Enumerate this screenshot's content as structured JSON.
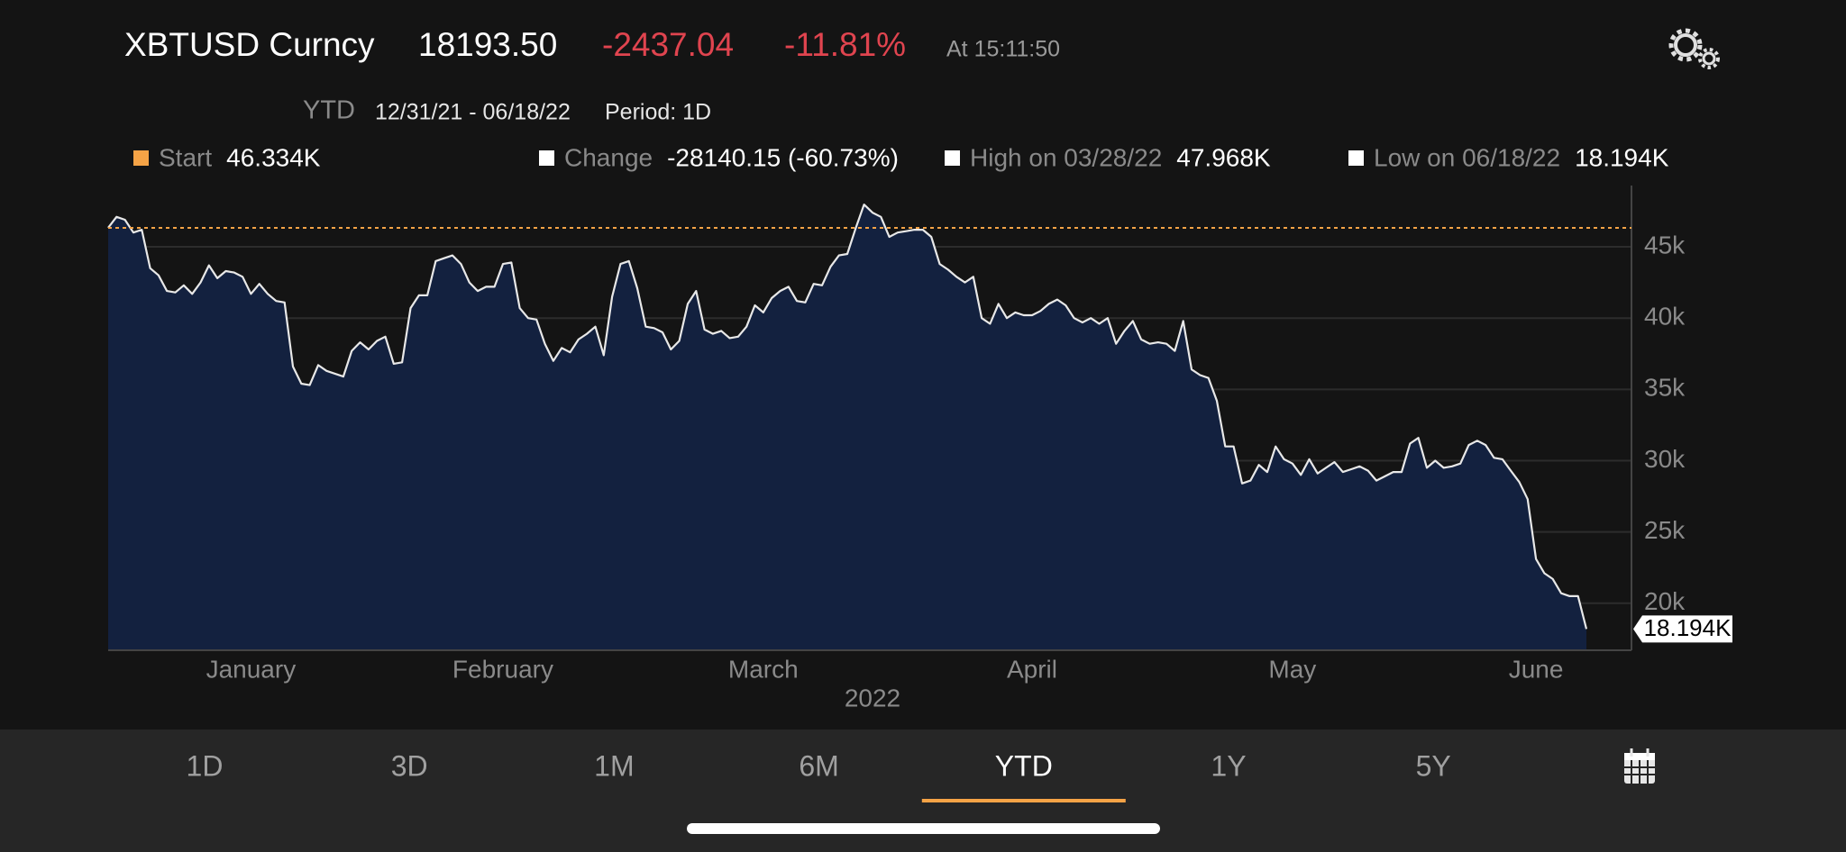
{
  "header": {
    "symbol": "XBTUSD Curncy",
    "price": "18193.50",
    "change": "-2437.04",
    "change_pct": "-11.81%",
    "time": "At 15:11:50"
  },
  "subheader": {
    "period_name": "YTD",
    "range": "12/31/21 - 06/18/22",
    "period": "Period: 1D"
  },
  "legend": [
    {
      "label": "Start",
      "value": "46.334K",
      "color": "#f5a346"
    },
    {
      "label": "Change",
      "value": "-28140.15 (-60.73%)",
      "color": "#ffffff"
    },
    {
      "label": "High on 03/28/22",
      "value": "47.968K",
      "color": "#ffffff"
    },
    {
      "label": "Low on 06/18/22",
      "value": "18.194K",
      "color": "#ffffff"
    }
  ],
  "chart_data": {
    "type": "area",
    "color": "#e8e8e8",
    "fill_color": "#13213f",
    "grid": true,
    "xlabel": "2022",
    "categories": [
      null,
      null,
      null,
      null,
      null,
      null,
      null,
      null,
      null,
      null,
      null,
      null,
      null,
      null,
      null,
      null,
      null,
      "January",
      null,
      null,
      null,
      null,
      null,
      null,
      null,
      null,
      null,
      null,
      null,
      null,
      null,
      null,
      null,
      null,
      null,
      null,
      null,
      null,
      null,
      null,
      null,
      null,
      null,
      null,
      null,
      null,
      null,
      "February",
      null,
      null,
      null,
      null,
      null,
      null,
      null,
      null,
      null,
      null,
      null,
      null,
      null,
      null,
      null,
      null,
      null,
      null,
      null,
      null,
      null,
      null,
      null,
      null,
      null,
      null,
      null,
      null,
      null,
      null,
      "March",
      null,
      null,
      null,
      null,
      null,
      null,
      null,
      null,
      null,
      null,
      null,
      null,
      null,
      null,
      null,
      null,
      null,
      null,
      null,
      null,
      null,
      null,
      null,
      null,
      null,
      null,
      null,
      null,
      null,
      null,
      null,
      "April",
      null,
      null,
      null,
      null,
      null,
      null,
      null,
      null,
      null,
      null,
      null,
      null,
      null,
      null,
      null,
      null,
      null,
      null,
      null,
      null,
      null,
      null,
      null,
      null,
      null,
      null,
      null,
      null,
      null,
      null,
      "May",
      null,
      null,
      null,
      null,
      null,
      null,
      null,
      null,
      null,
      null,
      null,
      null,
      null,
      null,
      null,
      null,
      null,
      null,
      null,
      null,
      null,
      null,
      null,
      null,
      null,
      null,
      null,
      null,
      "June",
      null,
      null,
      null,
      null,
      null,
      null
    ],
    "values": [
      46334,
      47100,
      46900,
      46000,
      46200,
      43500,
      43000,
      41900,
      41800,
      42300,
      41700,
      42500,
      43700,
      42800,
      43300,
      43200,
      42900,
      41700,
      42400,
      41700,
      41200,
      41100,
      36600,
      35400,
      35300,
      36700,
      36300,
      36100,
      35900,
      37700,
      38300,
      37800,
      38400,
      38700,
      36800,
      36900,
      40700,
      41600,
      41600,
      44000,
      44200,
      44400,
      43800,
      42500,
      41900,
      42200,
      42200,
      43800,
      43900,
      40700,
      40000,
      39900,
      38200,
      37000,
      37900,
      37600,
      38500,
      38900,
      39400,
      37400,
      41500,
      43800,
      44000,
      42100,
      39400,
      39300,
      39000,
      37800,
      38400,
      41000,
      41900,
      39200,
      38900,
      39100,
      38600,
      38700,
      39400,
      40900,
      40400,
      41400,
      41900,
      42200,
      41200,
      41100,
      42400,
      42300,
      43600,
      44400,
      44500,
      46300,
      47968,
      47400,
      47100,
      45700,
      46000,
      46100,
      46200,
      46200,
      45700,
      43800,
      43400,
      42900,
      42500,
      42900,
      40000,
      39600,
      41000,
      40000,
      40400,
      40200,
      40200,
      40500,
      41000,
      41300,
      40900,
      40000,
      39700,
      40000,
      39600,
      40000,
      38200,
      39100,
      39800,
      38500,
      38200,
      38300,
      38200,
      37700,
      39800,
      36400,
      36000,
      35800,
      34200,
      31000,
      31000,
      28400,
      28600,
      29700,
      29200,
      31000,
      30100,
      29800,
      29000,
      30100,
      29100,
      29500,
      29900,
      29200,
      29400,
      29600,
      29300,
      28600,
      28900,
      29200,
      29200,
      31200,
      31600,
      29500,
      30000,
      29500,
      29600,
      29800,
      31100,
      31400,
      31100,
      30200,
      30100,
      29300,
      28500,
      27300,
      23100,
      22100,
      21700,
      20700,
      20500,
      20500,
      18194
    ],
    "last_value_label": "18.194K",
    "reference_line": {
      "value": 46334,
      "color": "#f5a346"
    },
    "ylim": [
      16700,
      49300
    ],
    "yticks": [
      {
        "value": 20000,
        "label": "20k"
      },
      {
        "value": 25000,
        "label": "25k"
      },
      {
        "value": 30000,
        "label": "30k"
      },
      {
        "value": 35000,
        "label": "35k"
      },
      {
        "value": 40000,
        "label": "40k"
      },
      {
        "value": 45000,
        "label": "45k"
      }
    ]
  },
  "tabs": [
    "1D",
    "3D",
    "1M",
    "6M",
    "YTD",
    "1Y",
    "5Y"
  ],
  "selected_tab": 4
}
